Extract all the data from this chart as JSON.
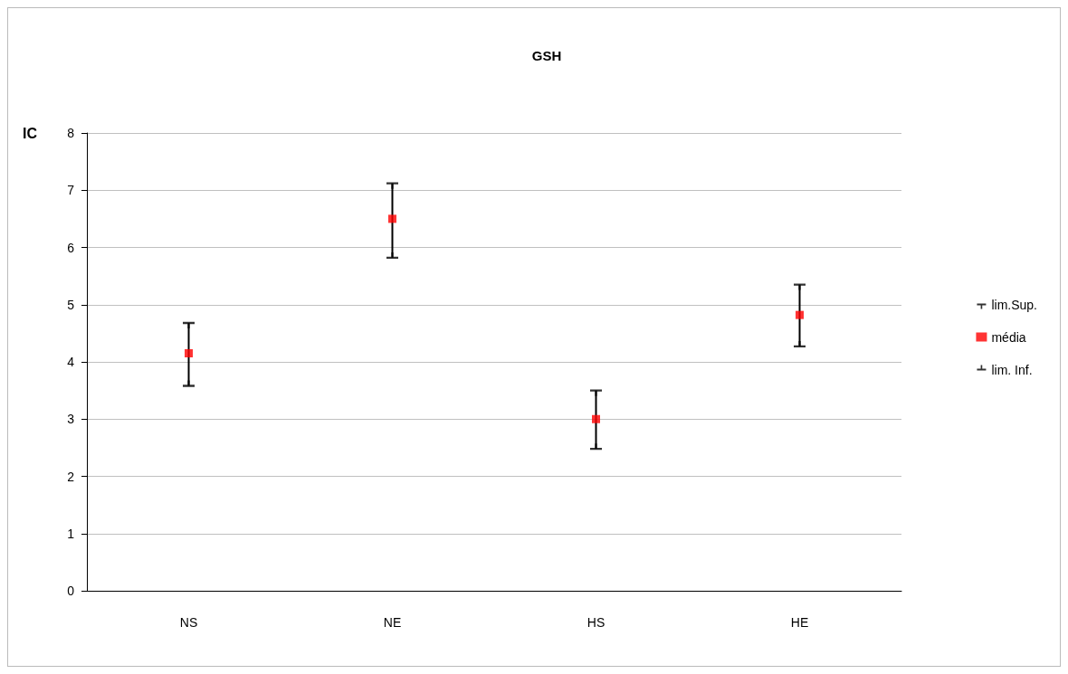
{
  "chart_data": {
    "type": "scatter",
    "title": "GSH",
    "ylabel": "IC",
    "categories": [
      "NS",
      "NE",
      "HS",
      "HE"
    ],
    "series": [
      {
        "name": "lim.Sup.",
        "color": "#000000",
        "values": [
          4.68,
          7.12,
          3.5,
          5.35
        ]
      },
      {
        "name": "média",
        "color": "#ff0000",
        "marker": "square",
        "values": [
          4.15,
          6.5,
          3.0,
          4.82
        ]
      },
      {
        "name": "lim. Inf.",
        "color": "#000000",
        "values": [
          3.58,
          5.82,
          2.48,
          4.27
        ]
      }
    ],
    "ylim": [
      0,
      8
    ],
    "yticks": [
      0,
      1,
      2,
      3,
      4,
      5,
      6,
      7,
      8
    ],
    "grid": "y",
    "legend": "right"
  }
}
